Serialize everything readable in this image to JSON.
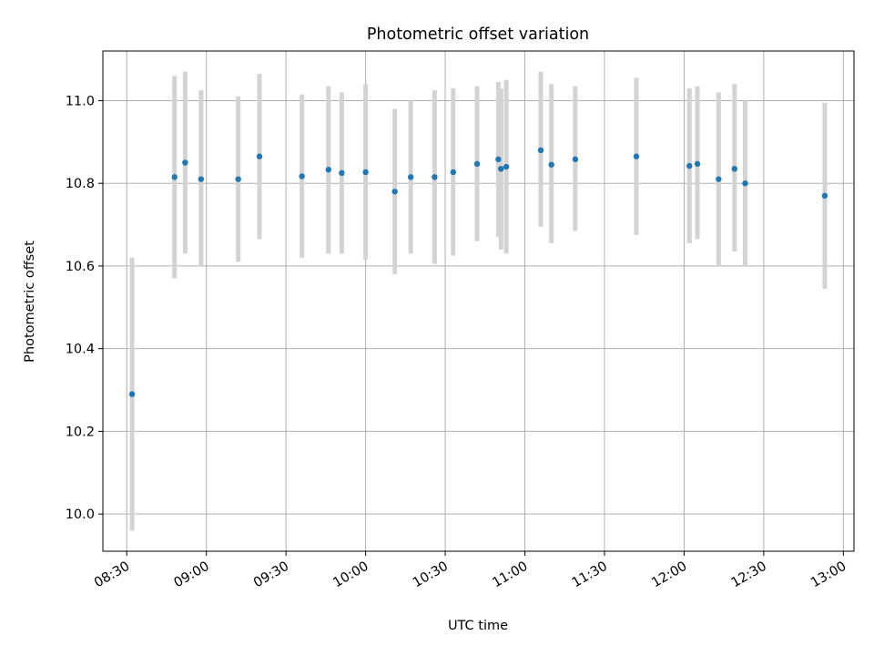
{
  "chart_data": {
    "type": "scatter",
    "title": "Photometric offset variation",
    "xlabel": "UTC time",
    "ylabel": "Photometric offset",
    "grid": true,
    "x_axis": "time",
    "xlim": [
      "08:21",
      "13:04"
    ],
    "ylim": [
      9.91,
      11.12
    ],
    "x_ticks": [
      "08:30",
      "09:00",
      "09:30",
      "10:00",
      "10:30",
      "11:00",
      "11:30",
      "12:00",
      "12:30",
      "13:00"
    ],
    "y_ticks": [
      "10.0",
      "10.2",
      "10.4",
      "10.6",
      "10.8",
      "11.0"
    ],
    "colors": {
      "marker": "#1f77b4",
      "errorbar": "#d3d3d3",
      "grid": "#b0b0b0"
    },
    "points": [
      {
        "time": "08:32",
        "y": 10.29,
        "ylow": 9.96,
        "yhigh": 10.62
      },
      {
        "time": "08:48",
        "y": 10.815,
        "ylow": 10.57,
        "yhigh": 11.06
      },
      {
        "time": "08:52",
        "y": 10.85,
        "ylow": 10.63,
        "yhigh": 11.07
      },
      {
        "time": "08:58",
        "y": 10.81,
        "ylow": 10.6,
        "yhigh": 11.025
      },
      {
        "time": "09:12",
        "y": 10.81,
        "ylow": 10.61,
        "yhigh": 11.01
      },
      {
        "time": "09:20",
        "y": 10.865,
        "ylow": 10.665,
        "yhigh": 11.065
      },
      {
        "time": "09:36",
        "y": 10.817,
        "ylow": 10.62,
        "yhigh": 11.015
      },
      {
        "time": "09:46",
        "y": 10.833,
        "ylow": 10.63,
        "yhigh": 11.035
      },
      {
        "time": "09:51",
        "y": 10.825,
        "ylow": 10.63,
        "yhigh": 11.02
      },
      {
        "time": "10:00",
        "y": 10.827,
        "ylow": 10.615,
        "yhigh": 11.04
      },
      {
        "time": "10:11",
        "y": 10.78,
        "ylow": 10.58,
        "yhigh": 10.98
      },
      {
        "time": "10:17",
        "y": 10.815,
        "ylow": 10.63,
        "yhigh": 11.0
      },
      {
        "time": "10:26",
        "y": 10.815,
        "ylow": 10.605,
        "yhigh": 11.025
      },
      {
        "time": "10:33",
        "y": 10.827,
        "ylow": 10.625,
        "yhigh": 11.03
      },
      {
        "time": "10:42",
        "y": 10.847,
        "ylow": 10.66,
        "yhigh": 11.035
      },
      {
        "time": "10:50",
        "y": 10.858,
        "ylow": 10.67,
        "yhigh": 11.045
      },
      {
        "time": "10:51",
        "y": 10.835,
        "ylow": 10.64,
        "yhigh": 11.03
      },
      {
        "time": "10:53",
        "y": 10.84,
        "ylow": 10.63,
        "yhigh": 11.05
      },
      {
        "time": "11:06",
        "y": 10.88,
        "ylow": 10.695,
        "yhigh": 11.07
      },
      {
        "time": "11:10",
        "y": 10.845,
        "ylow": 10.655,
        "yhigh": 11.04
      },
      {
        "time": "11:19",
        "y": 10.858,
        "ylow": 10.685,
        "yhigh": 11.035
      },
      {
        "time": "11:42",
        "y": 10.865,
        "ylow": 10.675,
        "yhigh": 11.055
      },
      {
        "time": "12:02",
        "y": 10.842,
        "ylow": 10.655,
        "yhigh": 11.03
      },
      {
        "time": "12:05",
        "y": 10.847,
        "ylow": 10.665,
        "yhigh": 11.035
      },
      {
        "time": "12:13",
        "y": 10.81,
        "ylow": 10.6,
        "yhigh": 11.02
      },
      {
        "time": "12:19",
        "y": 10.835,
        "ylow": 10.635,
        "yhigh": 11.04
      },
      {
        "time": "12:23",
        "y": 10.8,
        "ylow": 10.6,
        "yhigh": 11.0
      },
      {
        "time": "12:53",
        "y": 10.77,
        "ylow": 10.545,
        "yhigh": 10.995
      }
    ]
  }
}
